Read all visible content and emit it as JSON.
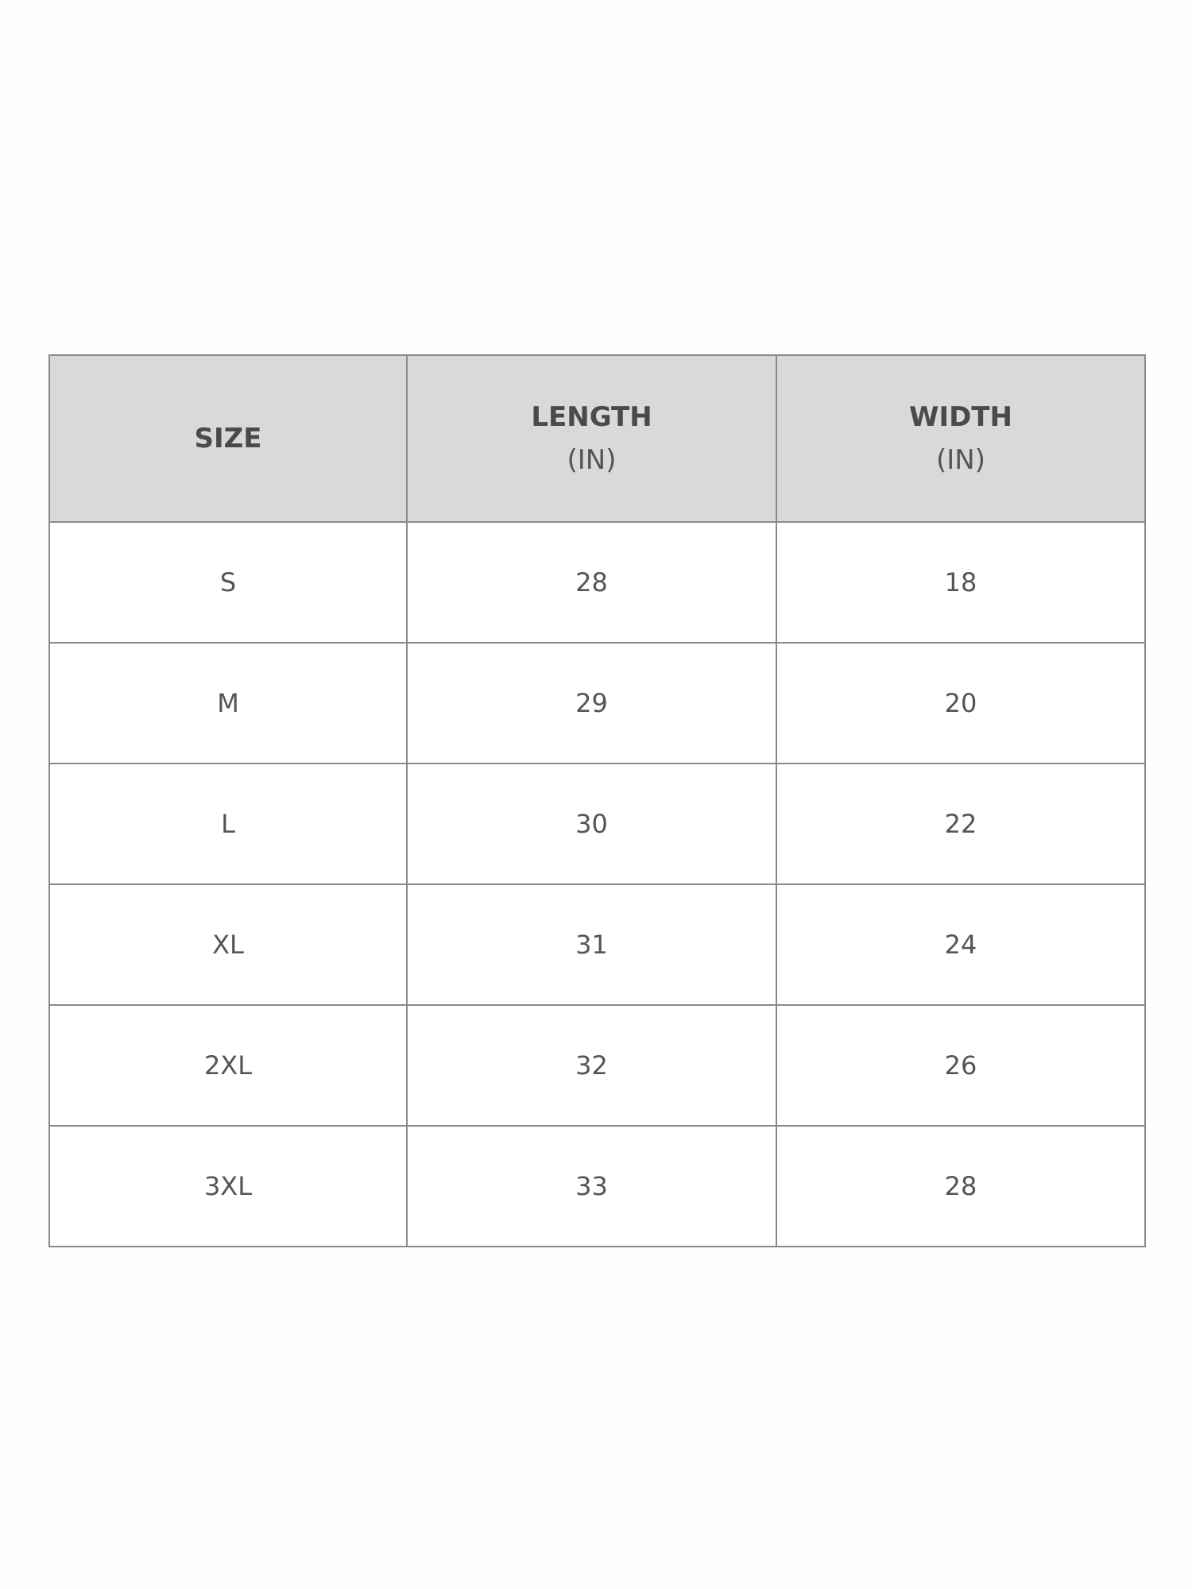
{
  "table": {
    "headers": [
      {
        "label": "SIZE",
        "unit": ""
      },
      {
        "label": "LENGTH",
        "unit": "(IN)"
      },
      {
        "label": "WIDTH",
        "unit": "(IN)"
      }
    ],
    "rows": [
      [
        "S",
        "28",
        "18"
      ],
      [
        "M",
        "29",
        "20"
      ],
      [
        "L",
        "30",
        "22"
      ],
      [
        "XL",
        "31",
        "24"
      ],
      [
        "2XL",
        "32",
        "26"
      ],
      [
        "3XL",
        "33",
        "28"
      ]
    ]
  },
  "colors": {
    "header_bg": "#d9d9d9",
    "border": "#8a8a8a",
    "text": "#555555"
  }
}
